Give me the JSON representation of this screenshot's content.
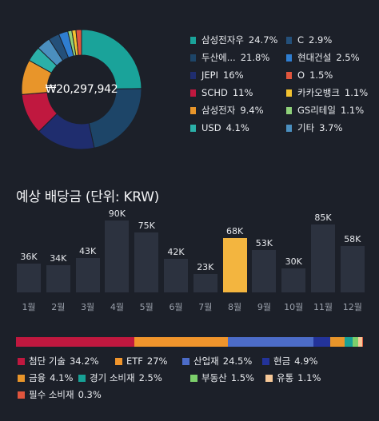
{
  "portfolio": {
    "total": "₩20,297,942",
    "holdings": [
      {
        "name": "삼성전자우",
        "pct": "24.7%",
        "value": 24.7,
        "color": "#1aa39a"
      },
      {
        "name": "두산에...",
        "pct": "21.8%",
        "value": 21.8,
        "color": "#1d4568"
      },
      {
        "name": "JEPI",
        "pct": "16%",
        "value": 16,
        "color": "#1f2d6e"
      },
      {
        "name": "SCHD",
        "pct": "11%",
        "value": 11,
        "color": "#c0183f"
      },
      {
        "name": "삼성전자",
        "pct": "9.4%",
        "value": 9.4,
        "color": "#e8952a"
      },
      {
        "name": "USD",
        "pct": "4.1%",
        "value": 4.1,
        "color": "#2bb0a8"
      },
      {
        "name": "C",
        "pct": "2.9%",
        "value": 2.9,
        "color": "#24507a"
      },
      {
        "name": "현대건설",
        "pct": "2.5%",
        "value": 2.5,
        "color": "#2f7ed1"
      },
      {
        "name": "O",
        "pct": "1.5%",
        "value": 1.5,
        "color": "#e0553d"
      },
      {
        "name": "카카오뱅크",
        "pct": "1.1%",
        "value": 1.1,
        "color": "#f2c230"
      },
      {
        "name": "GS리테일",
        "pct": "1.1%",
        "value": 1.1,
        "color": "#8fd17a"
      },
      {
        "name": "기타",
        "pct": "3.7%",
        "value": 3.7,
        "color": "#4b8fbf"
      }
    ]
  },
  "dividends": {
    "title": "예상 배당금 (단위: KRW)",
    "highlight_month": "8월",
    "months": [
      {
        "month": "1월",
        "label": "36K",
        "value": 36
      },
      {
        "month": "2월",
        "label": "34K",
        "value": 34
      },
      {
        "month": "3월",
        "label": "43K",
        "value": 43
      },
      {
        "month": "4월",
        "label": "90K",
        "value": 90
      },
      {
        "month": "5월",
        "label": "75K",
        "value": 75
      },
      {
        "month": "6월",
        "label": "42K",
        "value": 42
      },
      {
        "month": "7월",
        "label": "23K",
        "value": 23
      },
      {
        "month": "8월",
        "label": "68K",
        "value": 68
      },
      {
        "month": "9월",
        "label": "53K",
        "value": 53
      },
      {
        "month": "10월",
        "label": "30K",
        "value": 30
      },
      {
        "month": "11월",
        "label": "85K",
        "value": 85
      },
      {
        "month": "12월",
        "label": "58K",
        "value": 58
      }
    ]
  },
  "sectors": [
    {
      "name": "첨단 기술",
      "pct": "34.2%",
      "value": 34.2,
      "color": "#c0183f"
    },
    {
      "name": "ETF",
      "pct": "27%",
      "value": 27,
      "color": "#f0952c"
    },
    {
      "name": "산업재",
      "pct": "24.5%",
      "value": 24.5,
      "color": "#4c6cc8"
    },
    {
      "name": "현금",
      "pct": "4.9%",
      "value": 4.9,
      "color": "#23339a"
    },
    {
      "name": "금융",
      "pct": "4.1%",
      "value": 4.1,
      "color": "#e8952a"
    },
    {
      "name": "경기 소비재",
      "pct": "2.5%",
      "value": 2.5,
      "color": "#17a196"
    },
    {
      "name": "부동산",
      "pct": "1.5%",
      "value": 1.5,
      "color": "#7ccf6b"
    },
    {
      "name": "유통",
      "pct": "1.1%",
      "value": 1.1,
      "color": "#f6c898"
    },
    {
      "name": "필수 소비재",
      "pct": "0.3%",
      "value": 0.3,
      "color": "#e0553d"
    }
  ]
}
